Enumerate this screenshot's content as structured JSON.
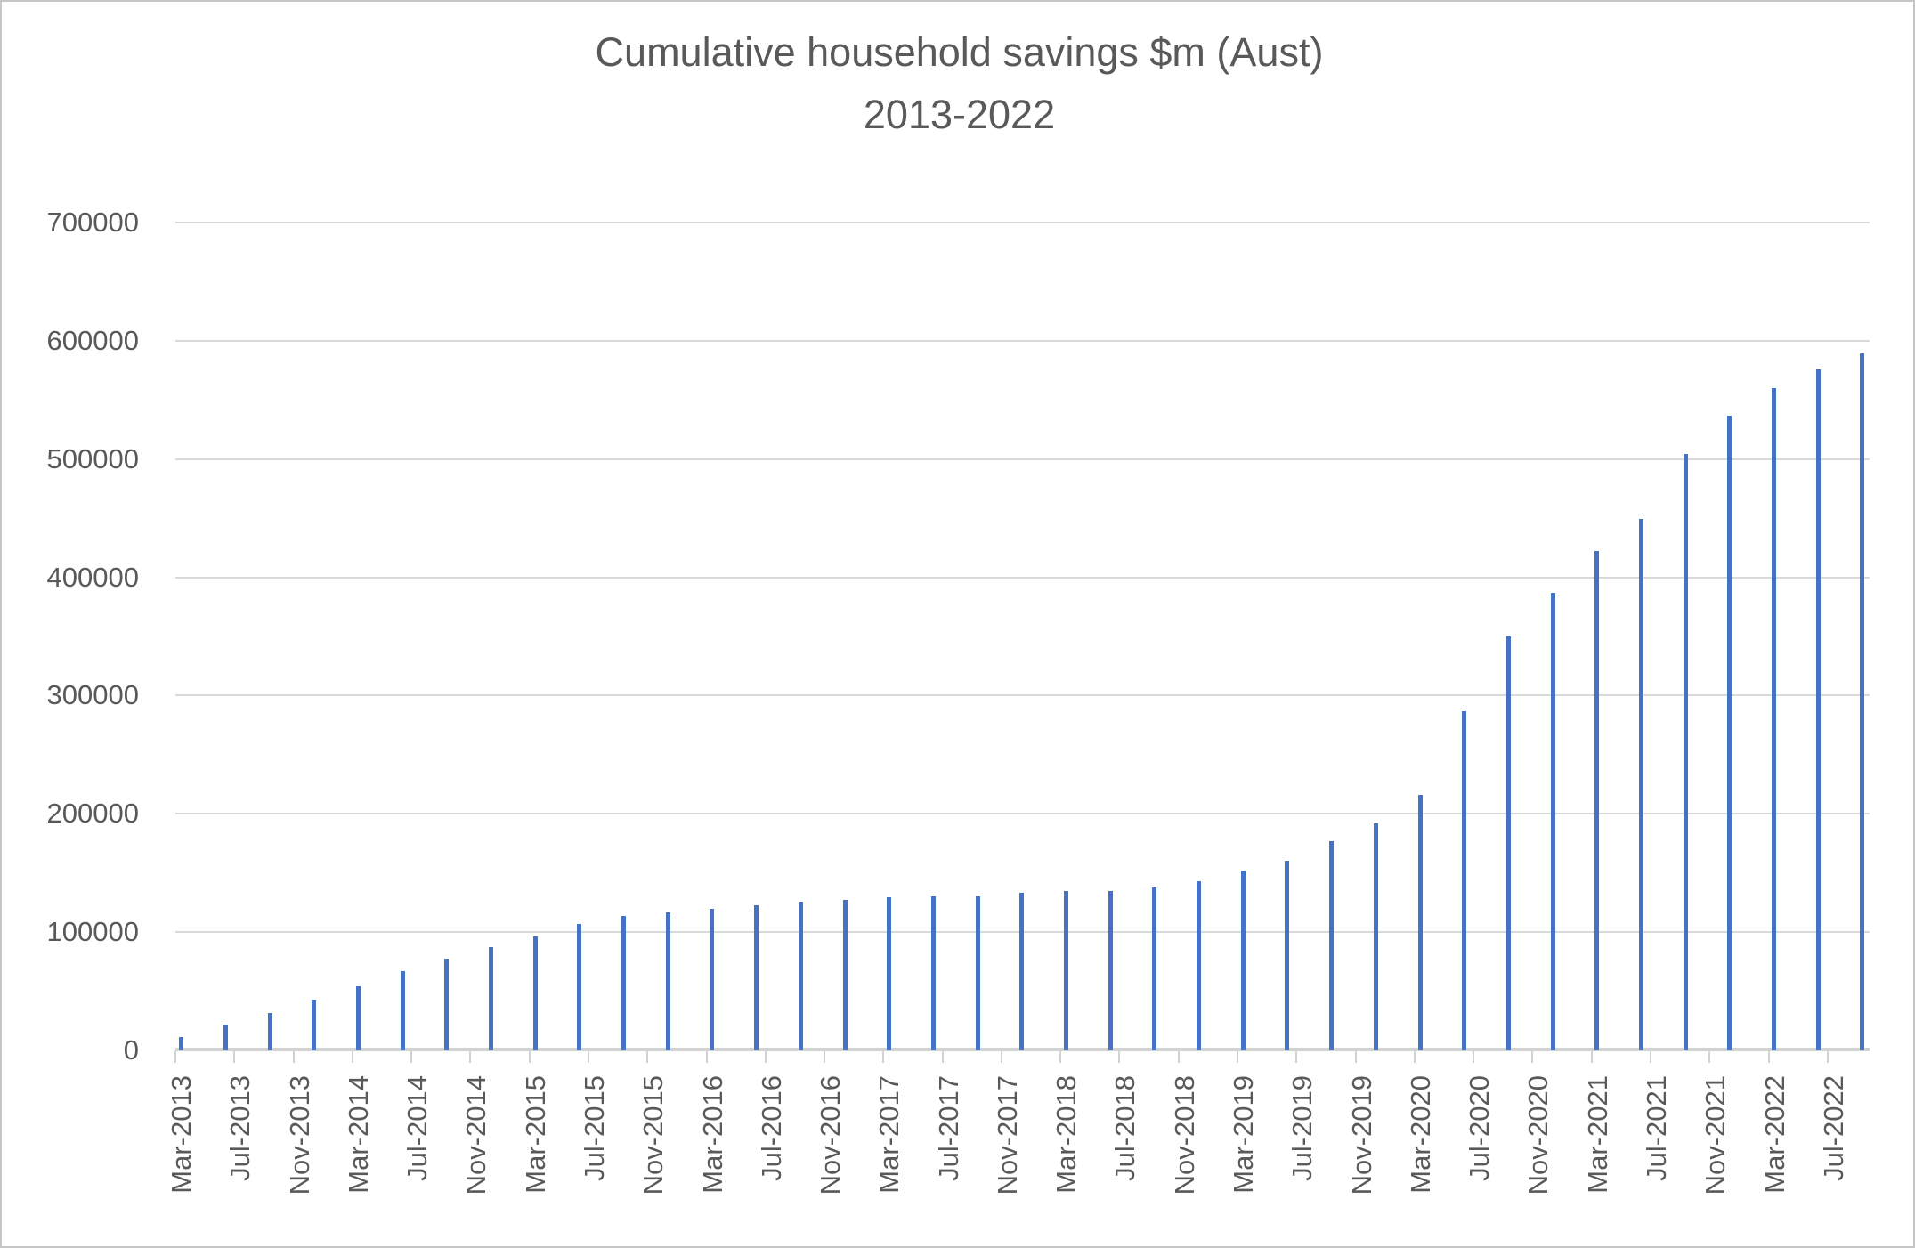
{
  "chart": {
    "title": "Cumulative household savings $m (Aust)",
    "subtitle": "2013-2022"
  },
  "chart_data": {
    "type": "bar",
    "title": "Cumulative household savings $m (Aust)",
    "subtitle": "2013-2022",
    "xlabel": "",
    "ylabel": "",
    "ylim": [
      0,
      700000
    ],
    "y_tick_step": 100000,
    "y_tick_labels": [
      "0",
      "100000",
      "200000",
      "300000",
      "400000",
      "500000",
      "600000",
      "700000"
    ],
    "grid": true,
    "legend": false,
    "bar_color": "#4472C4",
    "text_color": "#595959",
    "gridline_color": "#D9D9D9",
    "x_axis_shown_labels": [
      "Mar-2013",
      "Jul-2013",
      "Nov-2013",
      "Mar-2014",
      "Jul-2014",
      "Nov-2014",
      "Mar-2015",
      "Jul-2015",
      "Nov-2015",
      "Mar-2016",
      "Jul-2016",
      "Nov-2016",
      "Mar-2017",
      "Jul-2017",
      "Nov-2017",
      "Mar-2018",
      "Jul-2018",
      "Nov-2018",
      "Mar-2019",
      "Jul-2019",
      "Nov-2019",
      "Mar-2020",
      "Jul-2020",
      "Nov-2020",
      "Mar-2021",
      "Jul-2021",
      "Nov-2021",
      "Mar-2022",
      "Jul-2022"
    ],
    "categories": [
      "Mar-2013",
      "Jun-2013",
      "Sep-2013",
      "Dec-2013",
      "Mar-2014",
      "Jun-2014",
      "Sep-2014",
      "Dec-2014",
      "Mar-2015",
      "Jun-2015",
      "Sep-2015",
      "Dec-2015",
      "Mar-2016",
      "Jun-2016",
      "Sep-2016",
      "Dec-2016",
      "Mar-2017",
      "Jun-2017",
      "Sep-2017",
      "Dec-2017",
      "Mar-2018",
      "Jun-2018",
      "Sep-2018",
      "Dec-2018",
      "Mar-2019",
      "Jun-2019",
      "Sep-2019",
      "Dec-2019",
      "Mar-2020",
      "Jun-2020",
      "Sep-2020",
      "Dec-2020",
      "Mar-2021",
      "Jun-2021",
      "Sep-2021",
      "Dec-2021",
      "Mar-2022",
      "Jun-2022",
      "Sep-2022"
    ],
    "values": [
      11000,
      22000,
      31500,
      43000,
      54000,
      67000,
      77500,
      87000,
      96000,
      107000,
      114000,
      117000,
      120000,
      123000,
      126000,
      127500,
      129500,
      130000,
      130500,
      133500,
      135000,
      135000,
      137500,
      143000,
      152000,
      160000,
      177000,
      192000,
      216000,
      287000,
      350000,
      387000,
      422000,
      449000,
      504000,
      537000,
      560000,
      576000,
      589000
    ]
  }
}
